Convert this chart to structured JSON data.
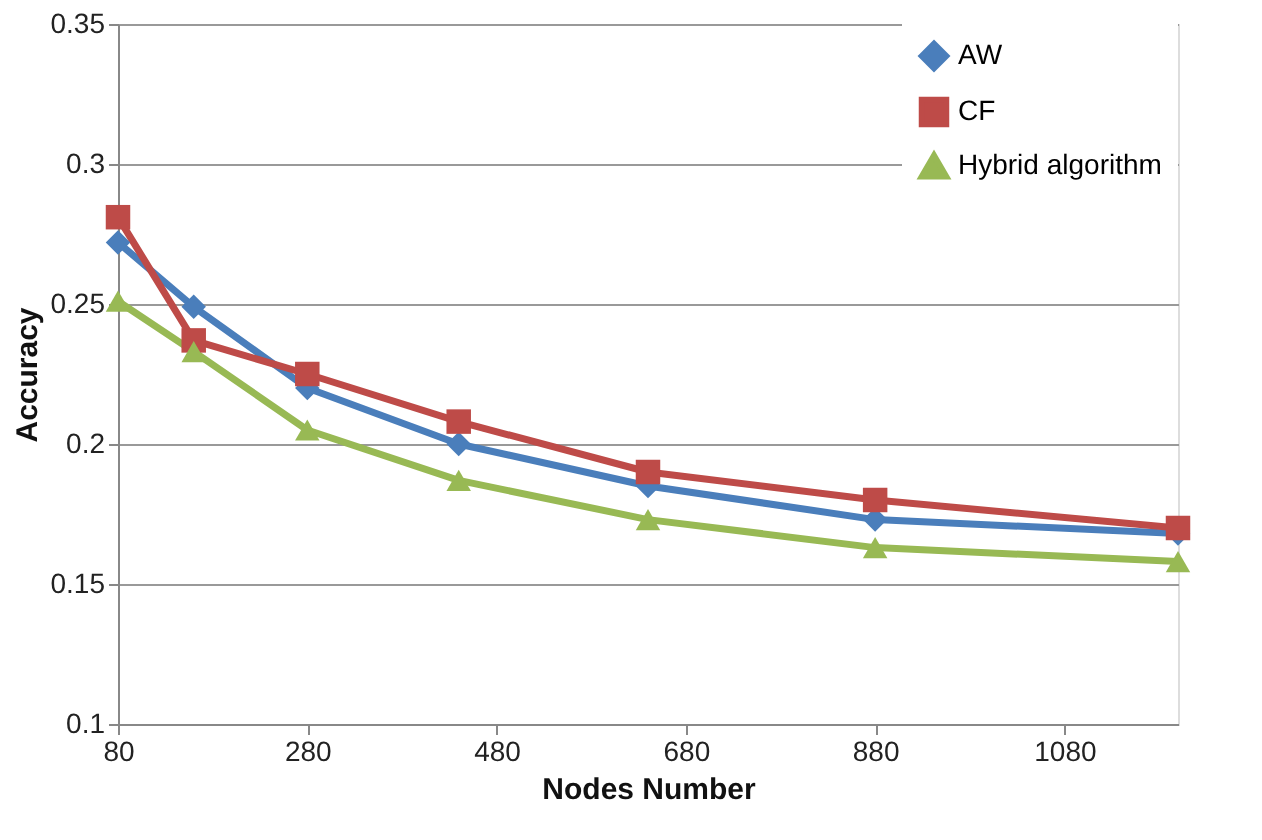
{
  "chart_data": {
    "type": "line",
    "xlabel": "Nodes Number",
    "ylabel": "Accuracy",
    "x": [
      80,
      160,
      280,
      440,
      640,
      880,
      1200
    ],
    "xlim": [
      80,
      1200
    ],
    "xticks": [
      80,
      280,
      480,
      680,
      880,
      1080
    ],
    "ylim": [
      0.1,
      0.35
    ],
    "yticks": [
      0.1,
      0.15,
      0.2,
      0.25,
      0.3,
      0.35
    ],
    "grid": "y",
    "legend": "top right",
    "series": [
      {
        "name": "AW",
        "color": "#4a7ebb",
        "marker": "diamond",
        "values": [
          0.272,
          0.249,
          0.22,
          0.2,
          0.185,
          0.173,
          0.168
        ]
      },
      {
        "name": "CF",
        "color": "#be4b48",
        "marker": "square",
        "values": [
          0.281,
          0.237,
          0.225,
          0.208,
          0.19,
          0.18,
          0.17
        ]
      },
      {
        "name": "Hybrid algorithm",
        "color": "#98b954",
        "marker": "triangle",
        "values": [
          0.251,
          0.233,
          0.205,
          0.187,
          0.173,
          0.163,
          0.158
        ]
      }
    ]
  }
}
